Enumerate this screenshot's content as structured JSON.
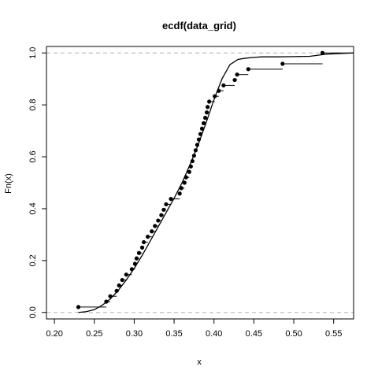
{
  "chart_data": {
    "type": "line",
    "title": "ecdf(data_grid)",
    "xlabel": "x",
    "ylabel": "Fn(x)",
    "xlim": [
      0.19,
      0.575
    ],
    "ylim": [
      -0.025,
      1.025
    ],
    "xticks": [
      0.2,
      0.25,
      0.3,
      0.35,
      0.4,
      0.45,
      0.5,
      0.55
    ],
    "xtick_labels": [
      "0.20",
      "0.25",
      "0.30",
      "0.35",
      "0.40",
      "0.45",
      "0.50",
      "0.55"
    ],
    "yticks": [
      0.0,
      0.2,
      0.4,
      0.6,
      0.8,
      1.0
    ],
    "ytick_labels": [
      "0.0",
      "0.2",
      "0.4",
      "0.6",
      "0.8",
      "1.0"
    ],
    "reference_lines_y": [
      0,
      1
    ],
    "ecdf_points": {
      "x": [
        0.23,
        0.265,
        0.27,
        0.278,
        0.281,
        0.285,
        0.29,
        0.297,
        0.301,
        0.303,
        0.306,
        0.31,
        0.312,
        0.317,
        0.322,
        0.326,
        0.33,
        0.334,
        0.337,
        0.34,
        0.346,
        0.357,
        0.359,
        0.363,
        0.365,
        0.369,
        0.371,
        0.373,
        0.375,
        0.377,
        0.379,
        0.381,
        0.383,
        0.385,
        0.387,
        0.389,
        0.391,
        0.392,
        0.394,
        0.401,
        0.406,
        0.412,
        0.426,
        0.429,
        0.443,
        0.486,
        0.536
      ],
      "y": [
        0.0208,
        0.0417,
        0.0625,
        0.0833,
        0.1042,
        0.125,
        0.1458,
        0.1667,
        0.1875,
        0.2083,
        0.2292,
        0.25,
        0.2708,
        0.2917,
        0.3125,
        0.3333,
        0.3542,
        0.375,
        0.3958,
        0.4167,
        0.4375,
        0.4583,
        0.4792,
        0.5,
        0.5208,
        0.5417,
        0.5625,
        0.5833,
        0.6042,
        0.625,
        0.6458,
        0.6667,
        0.6875,
        0.7083,
        0.7292,
        0.75,
        0.7708,
        0.7917,
        0.8125,
        0.8333,
        0.8542,
        0.875,
        0.8958,
        0.9167,
        0.9375,
        0.9583,
        1.0
      ]
    },
    "smooth_curve": {
      "x": [
        0.23,
        0.24,
        0.25,
        0.26,
        0.27,
        0.28,
        0.29,
        0.3,
        0.31,
        0.32,
        0.33,
        0.34,
        0.35,
        0.36,
        0.37,
        0.38,
        0.39,
        0.4,
        0.41,
        0.42,
        0.43,
        0.44,
        0.45,
        0.46,
        0.48,
        0.5,
        0.52,
        0.54,
        0.56,
        0.575
      ],
      "y": [
        0.0,
        0.003,
        0.011,
        0.028,
        0.052,
        0.085,
        0.125,
        0.17,
        0.22,
        0.275,
        0.33,
        0.385,
        0.44,
        0.5,
        0.57,
        0.645,
        0.73,
        0.82,
        0.9,
        0.955,
        0.975,
        0.98,
        0.983,
        0.985,
        0.985,
        0.986,
        0.987,
        0.995,
        0.998,
        1.0
      ]
    }
  }
}
